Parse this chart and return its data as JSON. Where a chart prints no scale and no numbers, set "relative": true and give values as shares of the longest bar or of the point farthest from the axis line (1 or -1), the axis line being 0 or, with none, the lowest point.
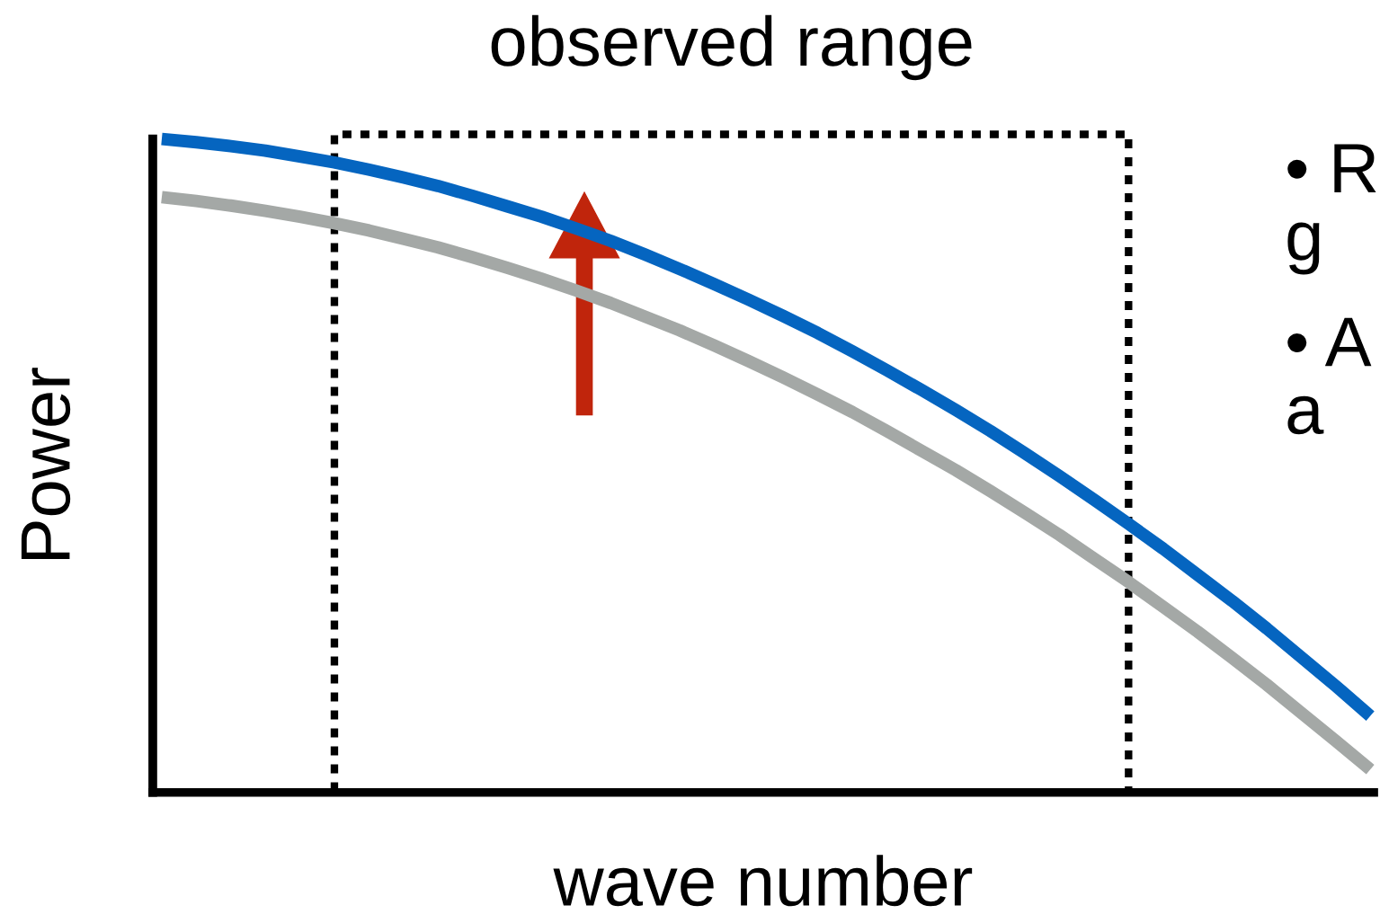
{
  "chart_data": {
    "type": "line",
    "relative": true,
    "xlabel": "wave number",
    "ylabel": "Power",
    "categories": [
      null,
      null,
      null,
      null,
      null,
      null,
      null,
      null,
      null,
      null,
      null,
      null,
      null,
      null,
      null,
      null,
      null,
      null,
      null,
      null,
      null,
      null,
      null,
      null,
      null,
      null,
      null,
      null,
      null,
      null,
      null,
      null,
      null,
      null,
      null,
      null
    ],
    "series": [
      {
        "color": "#a4a8a6",
        "values": [
          0.911,
          0.905,
          0.898,
          0.89,
          0.881,
          0.871,
          0.86,
          0.847,
          0.834,
          0.819,
          0.803,
          0.786,
          0.768,
          0.749,
          0.728,
          0.707,
          0.684,
          0.66,
          0.635,
          0.609,
          0.582,
          0.553,
          0.523,
          0.493,
          0.461,
          0.428,
          0.394,
          0.358,
          0.322,
          0.284,
          0.246,
          0.206,
          0.165,
          0.122,
          0.079,
          0.035
        ]
      },
      {
        "color": "#0565c0",
        "values": [
          1.0,
          0.995,
          0.989,
          0.982,
          0.973,
          0.964,
          0.953,
          0.941,
          0.928,
          0.913,
          0.897,
          0.881,
          0.863,
          0.844,
          0.823,
          0.801,
          0.778,
          0.754,
          0.729,
          0.703,
          0.675,
          0.646,
          0.616,
          0.585,
          0.553,
          0.519,
          0.484,
          0.448,
          0.411,
          0.373,
          0.333,
          0.293,
          0.251,
          0.207,
          0.163,
          0.117
        ]
      }
    ],
    "annotations": [
      "observed range",
      "• R\ng",
      "• A\na"
    ],
    "grid": false,
    "legend": false,
    "marker": "none",
    "line_style": "solid",
    "tick_labels": false
  }
}
